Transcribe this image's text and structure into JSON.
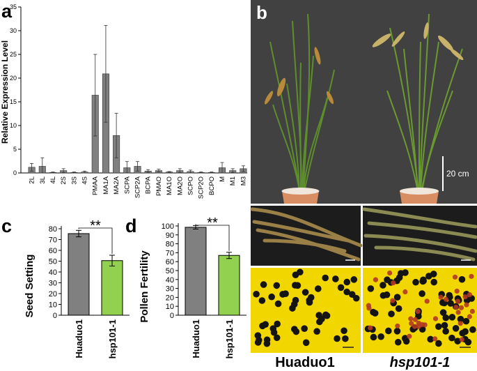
{
  "panels": {
    "a": "a",
    "b": "b",
    "c": "c",
    "d": "d"
  },
  "scale_bar_label": "20 cm",
  "genotypes": {
    "wild_type": "Huaduo1",
    "mutant": "hsp101-1"
  },
  "significance": "**",
  "colors": {
    "gray_bar": "#808080",
    "green_bar": "#92d050",
    "photo_background": "#3c3c3c",
    "pollen_background": "#f1d600",
    "pollen_dark": "#141414",
    "pollen_red": "#b03822"
  },
  "chart_data": [
    {
      "id": "a",
      "type": "bar",
      "ylabel": "Relative Expression Level",
      "xlabel": "",
      "ylim": [
        0,
        35
      ],
      "yticks": [
        0,
        5,
        10,
        15,
        20,
        25,
        30,
        35
      ],
      "categories": [
        "2L",
        "3L",
        "4L",
        "2S",
        "3S",
        "4S",
        "PMAA",
        "MA1A",
        "MA2A",
        "SCPA",
        "SCP2A",
        "BCPA",
        "PMAO",
        "MA1O",
        "MA2O",
        "SCPO",
        "SCP2O",
        "BCPO",
        "M",
        "M1",
        "M3"
      ],
      "values": [
        1.2,
        1.4,
        0.1,
        0.5,
        0.1,
        0.2,
        16.4,
        20.9,
        7.9,
        1.1,
        1.4,
        0.4,
        0.5,
        0.2,
        0.5,
        0.3,
        0.1,
        0.1,
        1.1,
        0.5,
        0.9
      ],
      "errors": [
        0.8,
        1.8,
        0.1,
        0.4,
        0.1,
        0.2,
        8.6,
        10.2,
        4.7,
        1.3,
        1.0,
        0.3,
        0.3,
        0.1,
        0.4,
        0.3,
        0.1,
        0.1,
        1.1,
        0.4,
        0.6
      ]
    },
    {
      "id": "c",
      "type": "bar",
      "ylabel": "Seed Setting",
      "xlabel": "",
      "ylim": [
        0,
        80
      ],
      "yticks": [
        0,
        10,
        20,
        30,
        40,
        50,
        60,
        70,
        80
      ],
      "categories": [
        "Huaduo1",
        "hsp101-1"
      ],
      "values": [
        75.5,
        50.5
      ],
      "errors": [
        3.0,
        5.0
      ]
    },
    {
      "id": "d",
      "type": "bar",
      "ylabel": "Pollen Fertility",
      "xlabel": "",
      "ylim": [
        0,
        100
      ],
      "yticks": [
        0,
        10,
        20,
        30,
        40,
        50,
        60,
        70,
        80,
        90,
        100
      ],
      "categories": [
        "Huaduo1",
        "hsp101-1"
      ],
      "values": [
        98.5,
        67.0
      ],
      "errors": [
        2.0,
        3.5
      ]
    }
  ]
}
